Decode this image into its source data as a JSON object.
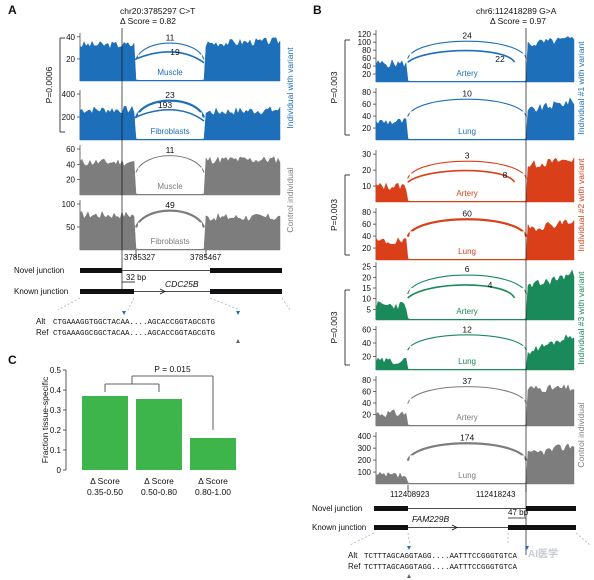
{
  "colors": {
    "blue": "#1e6fb9",
    "red": "#d9401a",
    "green": "#1a8a5a",
    "gray": "#7d7d7d",
    "bar": "#3db54a"
  },
  "panelA": {
    "label": "A",
    "variant": "chr20:3785297 C>T",
    "score": "Δ Score = 0.82",
    "pvalue": "P=0.0006",
    "group_variant": "Individual with variant",
    "group_control": "Control individual",
    "tracks": [
      {
        "tissue": "Muscle",
        "color": "blue",
        "yticks": [
          "20",
          "40"
        ],
        "arcs": [
          "11",
          "19"
        ]
      },
      {
        "tissue": "Fibroblasts",
        "color": "blue",
        "yticks": [
          "200",
          "400"
        ],
        "arcs": [
          "23",
          "193"
        ]
      },
      {
        "tissue": "Muscle",
        "color": "gray",
        "yticks": [
          "20",
          "40",
          "60"
        ],
        "arcs": [
          "11"
        ]
      },
      {
        "tissue": "Fibroblasts",
        "color": "gray",
        "yticks": [
          "50",
          "100"
        ],
        "arcs": [
          "49"
        ]
      }
    ],
    "coord_left": "3785327",
    "coord_right": "3785467",
    "novel": "Novel junction",
    "known": "Known junction",
    "bp": "32 bp",
    "gene": "CDC25B",
    "alt_label": "Alt",
    "ref_label": "Ref",
    "alt_seq": "CTGAAAGGTGGCTACAA....AGCACCGGTAGCGTG",
    "ref_seq": "CTGAAAGGCGGCTACAA....AGCACCGGTAGCGTG"
  },
  "panelB": {
    "label": "B",
    "variant": "chr6:112418289 G>A",
    "score": "Δ Score = 0.97",
    "groups": [
      {
        "name": "Individual #1 with variant",
        "pvalue": "P=0.003",
        "color": "blue"
      },
      {
        "name": "Individual #2 with variant",
        "pvalue": "P=0.003",
        "color": "red"
      },
      {
        "name": "Individual #3 with variant",
        "pvalue": "P=0.003",
        "color": "green"
      },
      {
        "name": "Control individual",
        "color": "gray"
      }
    ],
    "tracks": [
      {
        "tissue": "Artery",
        "color": "blue",
        "yticks": [
          "20",
          "40",
          "60",
          "80",
          "100",
          "120"
        ],
        "arcs": [
          "24",
          "22"
        ]
      },
      {
        "tissue": "Lung",
        "color": "blue",
        "yticks": [
          "20",
          "40",
          "60",
          "80"
        ],
        "arcs": [
          "10"
        ]
      },
      {
        "tissue": "Artery",
        "color": "red",
        "yticks": [
          "10",
          "20",
          "30"
        ],
        "arcs": [
          "3",
          "8"
        ]
      },
      {
        "tissue": "Lung",
        "color": "red",
        "yticks": [
          "20",
          "40",
          "60",
          "80"
        ],
        "arcs": [
          "60"
        ]
      },
      {
        "tissue": "Artery",
        "color": "green",
        "yticks": [
          "5",
          "10",
          "15",
          "20",
          "25"
        ],
        "arcs": [
          "6",
          "4"
        ]
      },
      {
        "tissue": "Lung",
        "color": "green",
        "yticks": [
          "20",
          "40",
          "60"
        ],
        "arcs": [
          "12"
        ]
      },
      {
        "tissue": "Artery",
        "color": "gray",
        "yticks": [
          "20",
          "40",
          "60",
          "80"
        ],
        "arcs": [
          "37"
        ]
      },
      {
        "tissue": "Lung",
        "color": "gray",
        "yticks": [
          "100",
          "200",
          "300",
          "400"
        ],
        "arcs": [
          "174"
        ]
      }
    ],
    "coord_left": "112408923",
    "coord_right": "112418243",
    "novel": "Novel junction",
    "known": "Known junction",
    "bp": "47 bp",
    "gene": "FAM229B",
    "alt_label": "Alt",
    "ref_label": "Ref",
    "alt_seq": "TCTTTAGCAGGTAGG....AATTTCCGGGTGTCA",
    "ref_seq": "TCTTTAGCAGGTAGG....AATTTCCGGGTGTCA",
    "watermark": "AI医学"
  },
  "panelC": {
    "label": "C",
    "ylabel": "Fraction tissue-specific",
    "pvalue": "P = 0.015"
  },
  "chart_data": {
    "type": "bar",
    "title": "",
    "xlabel": "",
    "ylabel": "Fraction tissue-specific",
    "categories": [
      "Δ Score 0.35-0.50",
      "Δ Score 0.50-0.80",
      "Δ Score 0.80-1.00"
    ],
    "category_lines": [
      [
        "Δ Score",
        "0.35-0.50"
      ],
      [
        "Δ Score",
        "0.50-0.80"
      ],
      [
        "Δ Score",
        "0.80-1.00"
      ]
    ],
    "values": [
      0.37,
      0.355,
      0.16
    ],
    "ylim": [
      0,
      0.5
    ],
    "yticks": [
      0,
      0.1,
      0.2,
      0.3,
      0.4,
      0.5
    ],
    "ytick_labels": [
      "0",
      "0.1",
      "0.2",
      "0.3",
      "0.4",
      "0.5"
    ],
    "annotation": "P = 0.015"
  }
}
